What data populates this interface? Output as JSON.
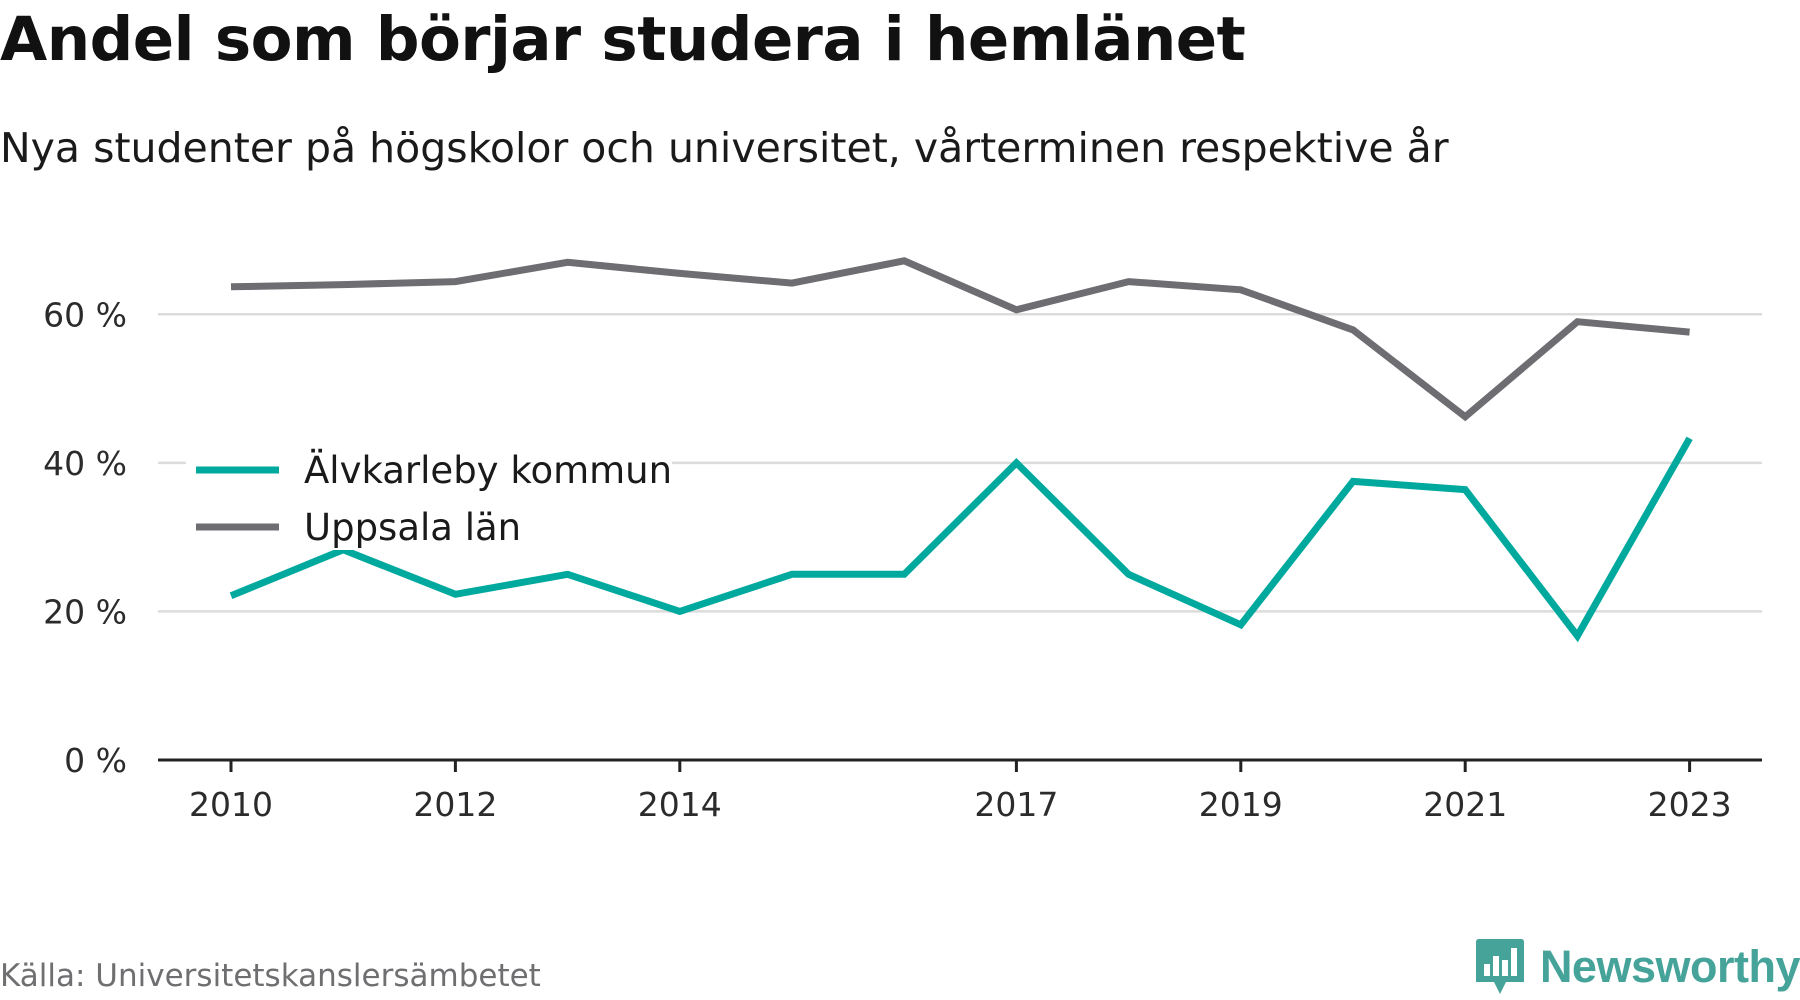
{
  "header": {
    "title": "Andel som börjar studera i hemlänet",
    "subtitle": "Nya studenter på högskolor och universitet, vårterminen respektive år"
  },
  "footer": {
    "source": "Källa: Universitetskanslersämbetet",
    "brand": "Newsworthy",
    "brand_icon": "newsworthy-logo-icon",
    "brand_color": "#45a39a"
  },
  "chart_data": {
    "type": "line",
    "x": [
      2010,
      2011,
      2012,
      2013,
      2014,
      2015,
      2016,
      2017,
      2018,
      2019,
      2020,
      2021,
      2022,
      2023
    ],
    "xticks": [
      2010,
      2012,
      2014,
      2017,
      2019,
      2021,
      2023
    ],
    "yticks": [
      0,
      20,
      40,
      60
    ],
    "ytick_labels": [
      "0 %",
      "20 %",
      "40 %",
      "60 %"
    ],
    "ylim": [
      0,
      70
    ],
    "grid": "horizontal",
    "legend_position": "left, middle",
    "series": [
      {
        "name": "Älvkarleby kommun",
        "color": "#00a99d",
        "values": [
          22.1,
          28.3,
          22.3,
          25.0,
          20.0,
          25.0,
          25.0,
          40.0,
          25.0,
          18.2,
          37.5,
          36.4,
          16.7,
          43.3
        ]
      },
      {
        "name": "Uppsala län",
        "color": "#6d6d72",
        "values": [
          63.7,
          64.0,
          64.4,
          67.0,
          65.5,
          64.2,
          67.2,
          60.6,
          64.4,
          63.3,
          57.9,
          46.2,
          59.0,
          57.6
        ]
      }
    ]
  }
}
